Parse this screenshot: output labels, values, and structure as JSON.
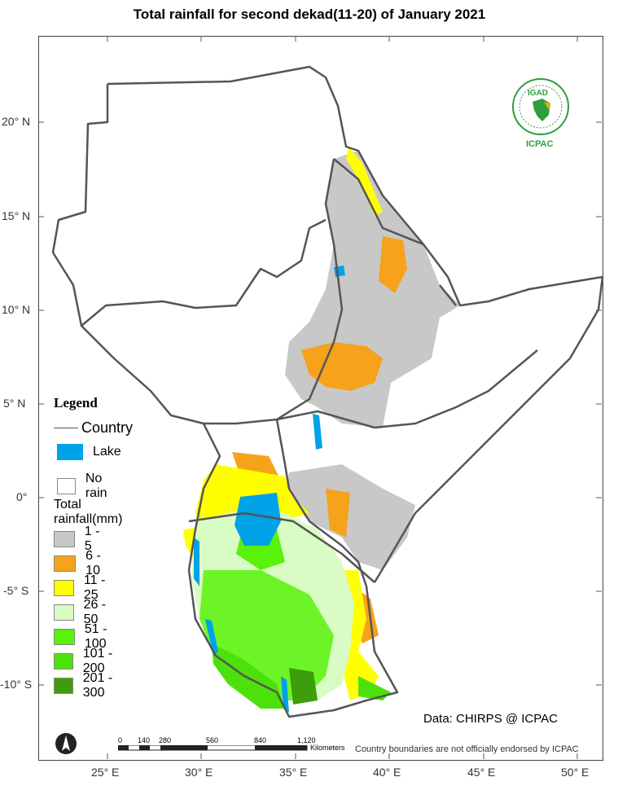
{
  "title": "Total rainfall for  second  dekad(11-20)  of January 2021",
  "axes": {
    "lat_labels": [
      "20° N",
      "15° N",
      "10° N",
      "5° N",
      "0°",
      "-5° S",
      "-10° S"
    ],
    "lon_labels": [
      "25° E",
      "30° E",
      "35° E",
      "40° E",
      "45° E",
      "50° E"
    ]
  },
  "legend": {
    "title": "Legend",
    "country_label": "Country",
    "lake_label": "Lake",
    "no_rain_label": "No rain",
    "rainfall_title": "Total rainfall(mm)",
    "classes": [
      {
        "label": "1 - 5",
        "color": "#c8c8c8"
      },
      {
        "label": "6 - 10",
        "color": "#f7a21b"
      },
      {
        "label": "11 - 25",
        "color": "#ffff00"
      },
      {
        "label": "26 - 50",
        "color": "#d9fcc4"
      },
      {
        "label": "51 - 100",
        "color": "#59f20a"
      },
      {
        "label": "101 - 200",
        "color": "#4ce10a"
      },
      {
        "label": "201 - 300",
        "color": "#3c9e0a"
      }
    ],
    "lake_color": "#00a2e8"
  },
  "logo": {
    "text_top": "IGAD",
    "text_bottom": "ICPAC"
  },
  "scale": {
    "ticks": [
      "0",
      "140",
      "280",
      "560",
      "840",
      "1,120"
    ],
    "unit": "Kilometers"
  },
  "credit": "Data: CHIRPS @ ICPAC",
  "disclaimer": "Country boundaries are not officially endorsed by ICPAC"
}
